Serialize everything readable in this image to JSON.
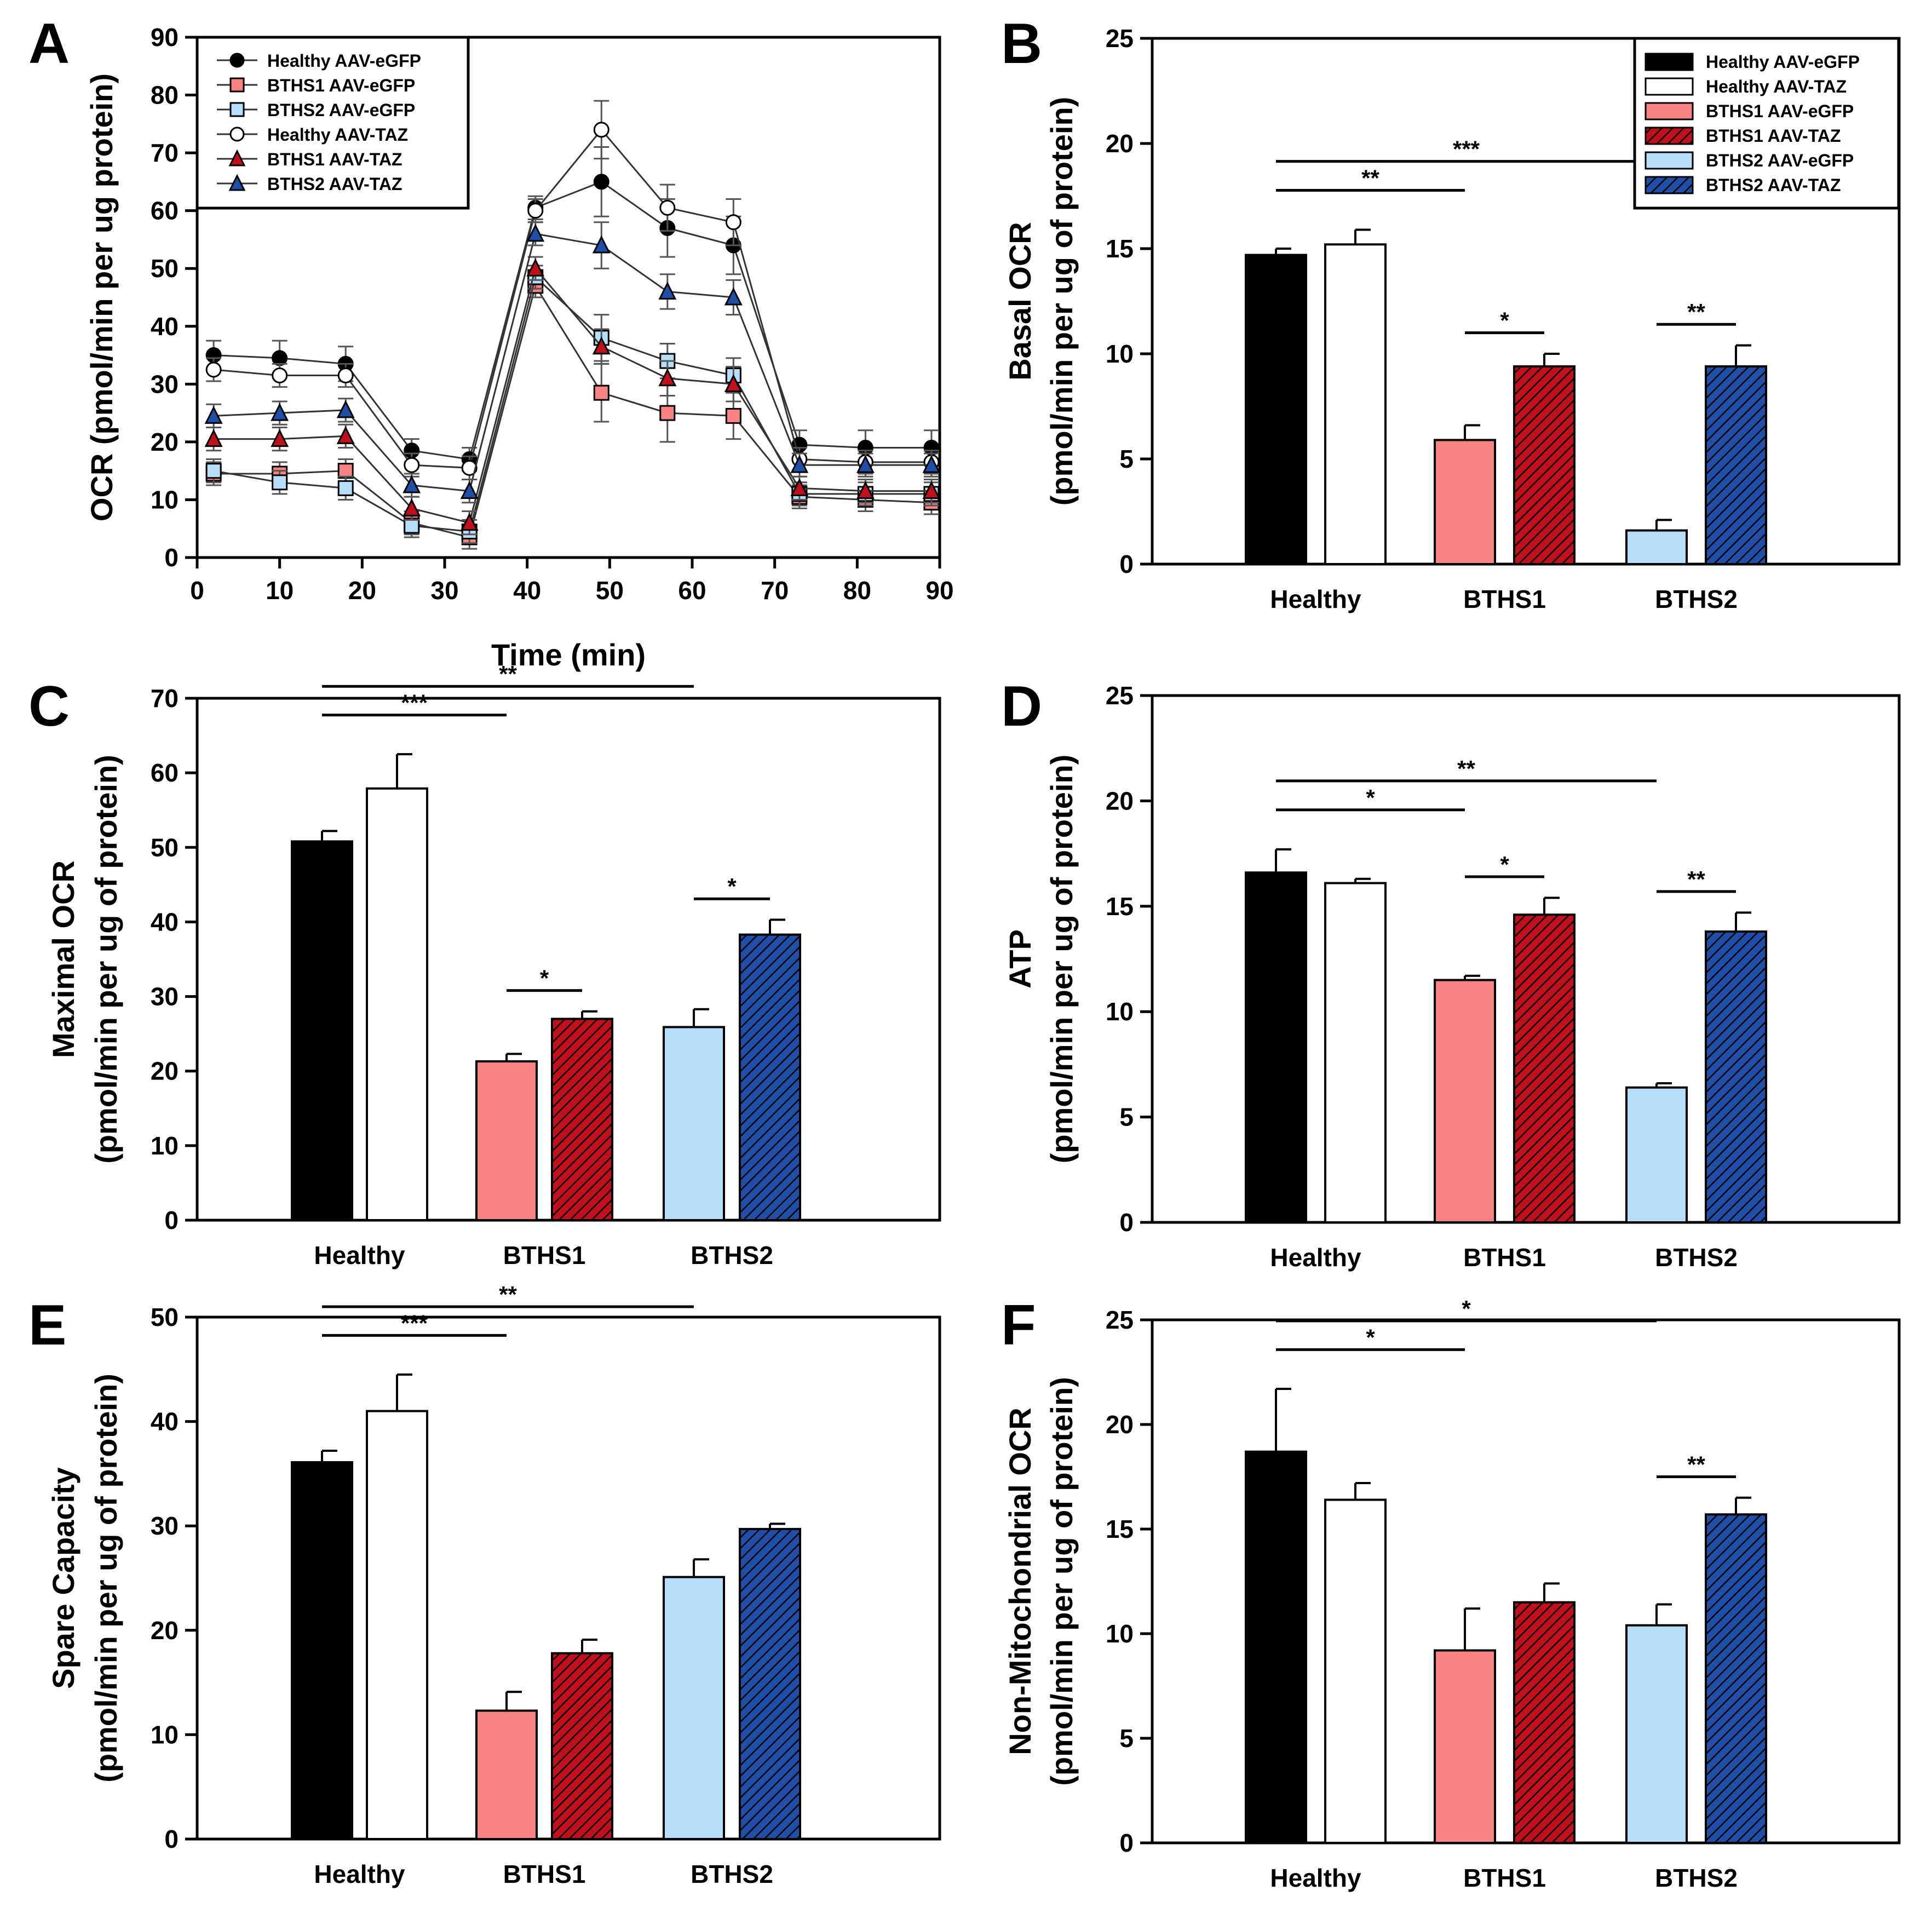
{
  "figure": {
    "colors": {
      "healthy_egfp": "#000000",
      "healthy_taz": "#ffffff",
      "bths1_egfp": "#f98383",
      "bths1_taz": "#c0101c",
      "bths2_egfp": "#b6defa",
      "bths2_taz": "#1f4fa8"
    }
  },
  "chart_data": [
    {
      "panel": "A",
      "type": "line",
      "title": "",
      "xlabel": "Time (min)",
      "ylabel": "OCR (pmol/min per ug protein)",
      "xlim": [
        0,
        90
      ],
      "ylim": [
        0,
        90
      ],
      "xticks": [
        "0",
        "10",
        "20",
        "30",
        "40",
        "50",
        "60",
        "70",
        "80",
        "90"
      ],
      "yticks": [
        "0",
        "10",
        "20",
        "30",
        "40",
        "50",
        "60",
        "70",
        "80",
        "90"
      ],
      "legend_position": "top-left",
      "x": [
        2,
        10,
        18,
        26,
        33,
        41,
        49,
        57,
        65,
        73,
        81,
        89
      ],
      "series": [
        {
          "name": "Healthy AAV-eGFP",
          "marker": "circle",
          "fill": "#000000",
          "values": [
            35,
            34.5,
            33.5,
            18.5,
            17,
            60.5,
            65,
            57,
            54,
            19.5,
            19,
            19
          ],
          "errors": [
            2.5,
            3,
            3,
            2,
            2,
            2,
            6,
            5,
            5,
            2.5,
            3,
            3
          ]
        },
        {
          "name": "BTHS1 AAV-eGFP",
          "marker": "square",
          "fill": "#f98383",
          "values": [
            14.5,
            14.5,
            15,
            6,
            3.5,
            47,
            28.5,
            25,
            24.5,
            10.5,
            10,
            9.5
          ],
          "errors": [
            2,
            2,
            2,
            2,
            2,
            2,
            5,
            5,
            4,
            2,
            2,
            2
          ]
        },
        {
          "name": "BTHS2 AAV-eGFP",
          "marker": "square",
          "fill": "#b6defa",
          "values": [
            15,
            13,
            12,
            5.5,
            4.5,
            48.5,
            38,
            34,
            31.5,
            11,
            11,
            11
          ],
          "errors": [
            2,
            2,
            2,
            2,
            2,
            2,
            4,
            3,
            3,
            2,
            2,
            2
          ]
        },
        {
          "name": "Healthy AAV-TAZ",
          "marker": "circle",
          "fill": "#ffffff",
          "values": [
            32.5,
            31.5,
            31.5,
            16,
            15.5,
            60,
            74,
            60.5,
            58,
            17,
            16.5,
            16.5
          ],
          "errors": [
            2,
            2,
            2,
            2,
            2,
            2,
            5,
            4,
            4,
            2,
            2,
            2
          ]
        },
        {
          "name": "BTHS1 AAV-TAZ",
          "marker": "triangle",
          "fill": "#c0101c",
          "values": [
            20.5,
            20.5,
            21,
            8.5,
            6,
            50,
            36.5,
            31,
            30,
            12,
            11.5,
            11.5
          ],
          "errors": [
            2,
            2,
            2,
            2,
            2,
            2,
            3,
            3,
            3,
            2,
            2,
            2
          ]
        },
        {
          "name": "BTHS2 AAV-TAZ",
          "marker": "triangle",
          "fill": "#1f4fa8",
          "values": [
            24.5,
            25,
            25.5,
            12.5,
            11.5,
            56,
            54,
            46,
            45,
            16,
            16,
            16
          ],
          "errors": [
            2,
            2,
            2,
            2,
            2,
            2,
            4,
            3,
            3,
            2,
            2,
            2
          ]
        }
      ]
    },
    {
      "panel": "B",
      "type": "bar",
      "ylabel": "Basal OCR",
      "ylabel2": "(pmol/min per ug of protein)",
      "ylim": [
        0,
        25
      ],
      "yticks": [
        "0",
        "5",
        "10",
        "15",
        "20",
        "25"
      ],
      "categories": [
        "Healthy",
        "BTHS1",
        "BTHS2"
      ],
      "legend_position": "top-right",
      "legend": [
        "Healthy AAV-eGFP",
        "Healthy AAV-TAZ",
        "BTHS1 AAV-eGFP",
        "BTHS1 AAV-TAZ",
        "BTHS2 AAV-eGFP",
        "BTHS2 AAV-TAZ"
      ],
      "bars": [
        {
          "category": "Healthy",
          "name": "Healthy AAV-eGFP",
          "value": 14.7,
          "error": 0.3
        },
        {
          "category": "Healthy",
          "name": "Healthy AAV-TAZ",
          "value": 15.2,
          "error": 0.7
        },
        {
          "category": "BTHS1",
          "name": "BTHS1 AAV-eGFP",
          "value": 5.9,
          "error": 0.7
        },
        {
          "category": "BTHS1",
          "name": "BTHS1 AAV-TAZ",
          "value": 9.4,
          "error": 0.6
        },
        {
          "category": "BTHS2",
          "name": "BTHS2 AAV-eGFP",
          "value": 1.6,
          "error": 0.5
        },
        {
          "category": "BTHS2",
          "name": "BTHS2 AAV-TAZ",
          "value": 9.4,
          "error": 1.0
        }
      ],
      "significance": [
        {
          "from": 0,
          "to": 2,
          "label": "**"
        },
        {
          "from": 0,
          "to": 4,
          "label": "***"
        },
        {
          "from": 2,
          "to": 3,
          "label": "*"
        },
        {
          "from": 4,
          "to": 5,
          "label": "**"
        }
      ]
    },
    {
      "panel": "C",
      "type": "bar",
      "ylabel": "Maximal OCR",
      "ylabel2": "(pmol/min per ug of protein)",
      "ylim": [
        0,
        70
      ],
      "yticks": [
        "0",
        "10",
        "20",
        "30",
        "40",
        "50",
        "60",
        "70"
      ],
      "categories": [
        "Healthy",
        "BTHS1",
        "BTHS2"
      ],
      "bars": [
        {
          "category": "Healthy",
          "name": "Healthy AAV-eGFP",
          "value": 50.8,
          "error": 1.4
        },
        {
          "category": "Healthy",
          "name": "Healthy AAV-TAZ",
          "value": 57.9,
          "error": 4.6
        },
        {
          "category": "BTHS1",
          "name": "BTHS1 AAV-eGFP",
          "value": 21.3,
          "error": 1.0
        },
        {
          "category": "BTHS1",
          "name": "BTHS1 AAV-TAZ",
          "value": 27,
          "error": 1.0
        },
        {
          "category": "BTHS2",
          "name": "BTHS2 AAV-eGFP",
          "value": 25.9,
          "error": 2.4
        },
        {
          "category": "BTHS2",
          "name": "BTHS2 AAV-TAZ",
          "value": 38.3,
          "error": 2.0
        }
      ],
      "significance": [
        {
          "from": 0,
          "to": 4,
          "label": "**"
        },
        {
          "from": 0,
          "to": 2,
          "label": "***"
        },
        {
          "from": 2,
          "to": 3,
          "label": "*"
        },
        {
          "from": 4,
          "to": 5,
          "label": "*"
        }
      ]
    },
    {
      "panel": "D",
      "type": "bar",
      "ylabel": "ATP",
      "ylabel2": "(pmol/min per ug of protein)",
      "ylim": [
        0,
        25
      ],
      "yticks": [
        "0",
        "5",
        "10",
        "15",
        "20",
        "25"
      ],
      "categories": [
        "Healthy",
        "BTHS1",
        "BTHS2"
      ],
      "bars": [
        {
          "category": "Healthy",
          "name": "Healthy AAV-eGFP",
          "value": 16.6,
          "error": 1.1
        },
        {
          "category": "Healthy",
          "name": "Healthy AAV-TAZ",
          "value": 16.1,
          "error": 0.2
        },
        {
          "category": "BTHS1",
          "name": "BTHS1 AAV-eGFP",
          "value": 11.5,
          "error": 0.2
        },
        {
          "category": "BTHS1",
          "name": "BTHS1 AAV-TAZ",
          "value": 14.6,
          "error": 0.8
        },
        {
          "category": "BTHS2",
          "name": "BTHS2 AAV-eGFP",
          "value": 6.4,
          "error": 0.2
        },
        {
          "category": "BTHS2",
          "name": "BTHS2 AAV-TAZ",
          "value": 13.8,
          "error": 0.9
        }
      ],
      "significance": [
        {
          "from": 0,
          "to": 4,
          "label": "**"
        },
        {
          "from": 0,
          "to": 2,
          "label": "*"
        },
        {
          "from": 2,
          "to": 3,
          "label": "*"
        },
        {
          "from": 4,
          "to": 5,
          "label": "**"
        }
      ]
    },
    {
      "panel": "E",
      "type": "bar",
      "ylabel": "Spare Capacity",
      "ylabel2": "(pmol/min per ug of protein)",
      "ylim": [
        0,
        50
      ],
      "yticks": [
        "0",
        "10",
        "20",
        "30",
        "40",
        "50"
      ],
      "categories": [
        "Healthy",
        "BTHS1",
        "BTHS2"
      ],
      "bars": [
        {
          "category": "Healthy",
          "name": "Healthy AAV-eGFP",
          "value": 36.1,
          "error": 1.1
        },
        {
          "category": "Healthy",
          "name": "Healthy AAV-TAZ",
          "value": 41,
          "error": 3.5
        },
        {
          "category": "BTHS1",
          "name": "BTHS1 AAV-eGFP",
          "value": 12.3,
          "error": 1.8
        },
        {
          "category": "BTHS1",
          "name": "BTHS1 AAV-TAZ",
          "value": 17.8,
          "error": 1.3
        },
        {
          "category": "BTHS2",
          "name": "BTHS2 AAV-eGFP",
          "value": 25.1,
          "error": 1.7
        },
        {
          "category": "BTHS2",
          "name": "BTHS2 AAV-TAZ",
          "value": 29.7,
          "error": 0.5
        }
      ],
      "significance": [
        {
          "from": 0,
          "to": 4,
          "label": "**"
        },
        {
          "from": 0,
          "to": 2,
          "label": "***"
        }
      ]
    },
    {
      "panel": "F",
      "type": "bar",
      "ylabel": "Non-Mitochondrial OCR",
      "ylabel2": "(pmol/min per ug of protein)",
      "ylim": [
        0,
        25
      ],
      "yticks": [
        "0",
        "5",
        "10",
        "15",
        "20",
        "25"
      ],
      "categories": [
        "Healthy",
        "BTHS1",
        "BTHS2"
      ],
      "bars": [
        {
          "category": "Healthy",
          "name": "Healthy AAV-eGFP",
          "value": 18.7,
          "error": 3.0
        },
        {
          "category": "Healthy",
          "name": "Healthy AAV-TAZ",
          "value": 16.4,
          "error": 0.8
        },
        {
          "category": "BTHS1",
          "name": "BTHS1 AAV-eGFP",
          "value": 9.2,
          "error": 2.0
        },
        {
          "category": "BTHS1",
          "name": "BTHS1 AAV-TAZ",
          "value": 11.5,
          "error": 0.9
        },
        {
          "category": "BTHS2",
          "name": "BTHS2 AAV-eGFP",
          "value": 10.4,
          "error": 1.0
        },
        {
          "category": "BTHS2",
          "name": "BTHS2 AAV-TAZ",
          "value": 15.7,
          "error": 0.8
        }
      ],
      "significance": [
        {
          "from": 0,
          "to": 4,
          "label": "*"
        },
        {
          "from": 0,
          "to": 2,
          "label": "*"
        },
        {
          "from": 4,
          "to": 5,
          "label": "**"
        }
      ]
    }
  ]
}
